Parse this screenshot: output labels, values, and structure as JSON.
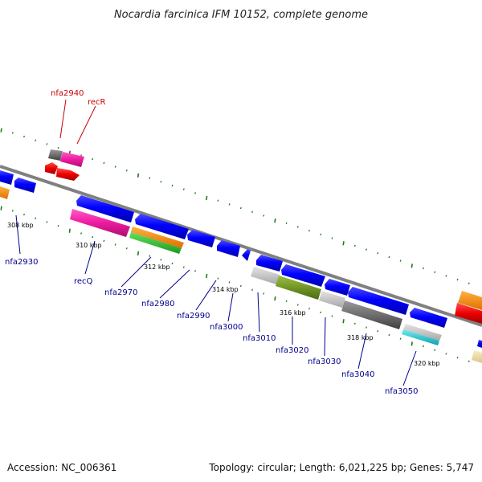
{
  "title": "Nocardia farcinica IFM 10152, complete genome",
  "footer": {
    "accession": "Accession: NC_006361",
    "topology": "Topology: circular; Length: 6,021,225 bp; Genes: 5,747"
  },
  "colors": {
    "backbone": "#808080",
    "tick": "#1e7a1e",
    "forward_label": "#cc0000",
    "reverse_label": "#00008b"
  },
  "scale_labels": [
    "308 kbp",
    "310 kbp",
    "312 kbp",
    "314 kbp",
    "316 kbp",
    "318 kbp",
    "320 kbp"
  ],
  "gene_labels": [
    {
      "text": "nfa2940",
      "strand": "forward"
    },
    {
      "text": "recR",
      "strand": "forward"
    },
    {
      "text": "nfa2930",
      "strand": "reverse"
    },
    {
      "text": "recQ",
      "strand": "reverse"
    },
    {
      "text": "nfa2970",
      "strand": "reverse"
    },
    {
      "text": "nfa2980",
      "strand": "reverse"
    },
    {
      "text": "nfa2990",
      "strand": "reverse"
    },
    {
      "text": "nfa3000",
      "strand": "reverse"
    },
    {
      "text": "nfa3010",
      "strand": "reverse"
    },
    {
      "text": "nfa3020",
      "strand": "reverse"
    },
    {
      "text": "nfa3030",
      "strand": "reverse"
    },
    {
      "text": "nfa3040",
      "strand": "reverse"
    },
    {
      "text": "nfa3050",
      "strand": "reverse"
    }
  ],
  "feature_colors": [
    "blue",
    "magenta",
    "orange",
    "green",
    "gray",
    "olive",
    "red",
    "cyan",
    "light-gray",
    "tan"
  ]
}
